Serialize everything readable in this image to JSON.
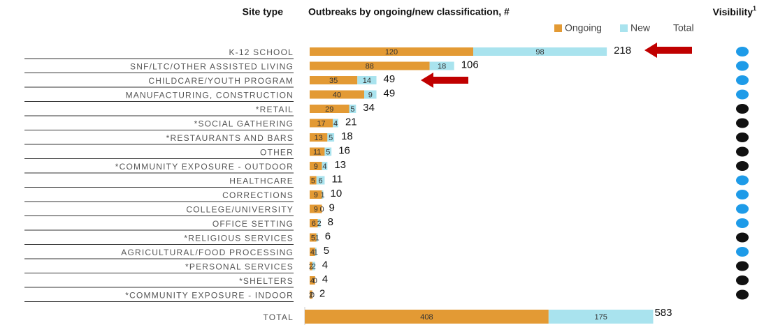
{
  "chart_data": {
    "type": "stacked-bar-horizontal",
    "title": "Outbreaks by ongoing/new classification, #",
    "category_header": "Site type",
    "visibility_header": "Visibility",
    "visibility_footnote": "1",
    "total_legend": "Total",
    "categories": [
      "K-12 SCHOOL",
      "SNF/LTC/OTHER ASSISTED LIVING",
      "CHILDCARE/YOUTH PROGRAM",
      "MANUFACTURING, CONSTRUCTION",
      "*RETAIL",
      "*SOCIAL GATHERING",
      "*RESTAURANTS AND BARS",
      "OTHER",
      "*COMMUNITY EXPOSURE - OUTDOOR",
      "HEALTHCARE",
      "CORRECTIONS",
      "COLLEGE/UNIVERSITY",
      "OFFICE SETTING",
      "*RELIGIOUS SERVICES",
      "AGRICULTURAL/FOOD PROCESSING",
      "*PERSONAL SERVICES",
      "*SHELTERS",
      "*COMMUNITY EXPOSURE - INDOOR"
    ],
    "series": [
      {
        "name": "Ongoing",
        "color": "#e39a34",
        "values": [
          120,
          88,
          35,
          40,
          29,
          17,
          13,
          11,
          9,
          5,
          9,
          9,
          6,
          5,
          4,
          2,
          4,
          2
        ]
      },
      {
        "name": "New",
        "color": "#a9e3ee",
        "values": [
          98,
          18,
          14,
          9,
          5,
          4,
          5,
          5,
          4,
          6,
          1,
          0,
          2,
          1,
          1,
          2,
          0,
          0
        ]
      }
    ],
    "totals": [
      218,
      106,
      49,
      49,
      34,
      21,
      18,
      16,
      13,
      11,
      10,
      9,
      8,
      6,
      5,
      4,
      4,
      2
    ],
    "visibility_colors": [
      "#1e9be8",
      "#1e9be8",
      "#1e9be8",
      "#1e9be8",
      "#111111",
      "#111111",
      "#111111",
      "#111111",
      "#111111",
      "#1e9be8",
      "#1e9be8",
      "#1e9be8",
      "#1e9be8",
      "#111111",
      "#1e9be8",
      "#111111",
      "#111111",
      "#111111"
    ],
    "xlim": [
      0,
      220
    ],
    "total_row": {
      "label": "TOTAL",
      "values": [
        408,
        175
      ],
      "total": 583,
      "xlim": [
        0,
        600
      ]
    }
  }
}
